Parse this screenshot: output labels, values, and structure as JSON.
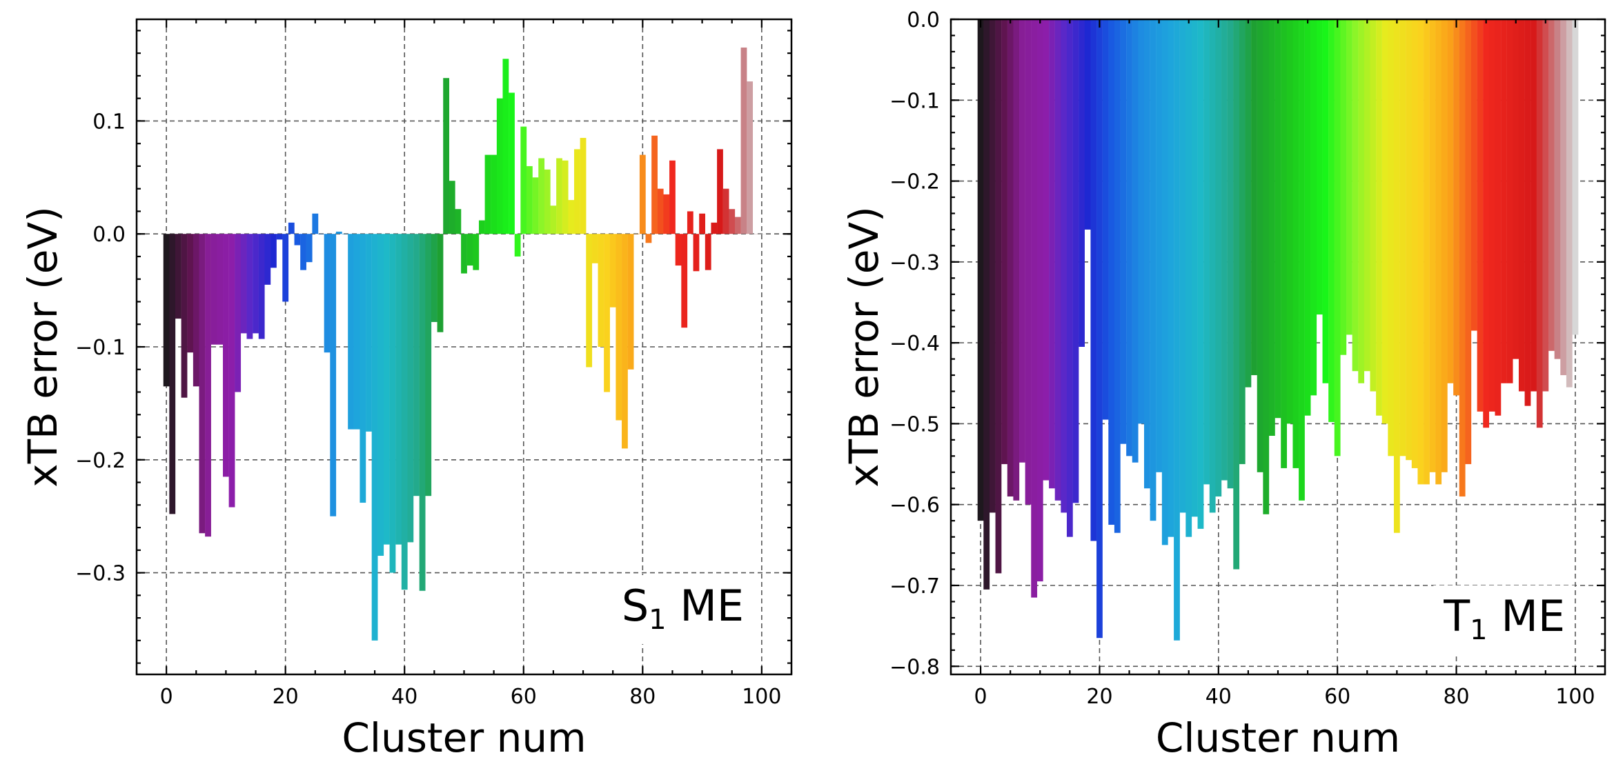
{
  "figure": {
    "panels": [
      {
        "annotation_main": "S",
        "annotation_sub": "1",
        "annotation_rest": " ME",
        "xlabel": "Cluster num",
        "ylabel": "xTB error (eV)"
      },
      {
        "annotation_main": "T",
        "annotation_sub": "1",
        "annotation_rest": " ME",
        "xlabel": "Cluster num",
        "ylabel": "xTB error (eV)"
      }
    ]
  },
  "chart_data": [
    {
      "type": "bar",
      "xlabel": "Cluster num",
      "ylabel": "xTB error (eV)",
      "annotation": "S1 ME",
      "xlim": [
        -5,
        105
      ],
      "ylim": [
        -0.39,
        0.19
      ],
      "xticks": [
        0,
        20,
        40,
        60,
        80,
        100
      ],
      "xtick_labels": [
        "0",
        "20",
        "40",
        "60",
        "80",
        "100"
      ],
      "yticks": [
        -0.3,
        -0.2,
        -0.1,
        0.0,
        0.1
      ],
      "ytick_labels": [
        "−0.3",
        "−0.2",
        "−0.1",
        "0.0",
        "0.1"
      ],
      "grid": true,
      "colormap": "gist_ncar-like rainbow (black → purple → blue → cyan → green → yellow → orange → red → light gray)",
      "x": [
        0,
        1,
        2,
        3,
        4,
        5,
        6,
        7,
        8,
        9,
        10,
        11,
        12,
        13,
        14,
        15,
        16,
        17,
        18,
        19,
        20,
        21,
        22,
        23,
        24,
        25,
        26,
        27,
        28,
        29,
        30,
        31,
        32,
        33,
        34,
        35,
        36,
        37,
        38,
        39,
        40,
        41,
        42,
        43,
        44,
        45,
        46,
        47,
        48,
        49,
        50,
        51,
        52,
        53,
        54,
        55,
        56,
        57,
        58,
        59,
        60,
        61,
        62,
        63,
        64,
        65,
        66,
        67,
        68,
        69,
        70,
        71,
        72,
        73,
        74,
        75,
        76,
        77,
        78,
        79,
        80,
        81,
        82,
        83,
        84,
        85,
        86,
        87,
        88,
        89,
        90,
        91,
        92,
        93,
        94,
        95,
        96,
        97,
        98,
        99,
        100
      ],
      "values": [
        -0.135,
        -0.248,
        -0.075,
        -0.145,
        -0.105,
        -0.135,
        -0.265,
        -0.268,
        -0.098,
        -0.098,
        -0.215,
        -0.242,
        -0.14,
        -0.088,
        -0.093,
        -0.088,
        -0.093,
        -0.045,
        -0.03,
        -0.005,
        -0.06,
        0.01,
        -0.01,
        -0.032,
        -0.025,
        0.018,
        0.0,
        -0.105,
        -0.25,
        0.002,
        0.0,
        -0.173,
        -0.173,
        -0.238,
        -0.175,
        -0.36,
        -0.285,
        -0.275,
        -0.3,
        -0.275,
        -0.315,
        -0.273,
        -0.232,
        -0.316,
        -0.232,
        -0.078,
        -0.087,
        0.138,
        0.047,
        0.022,
        -0.035,
        -0.028,
        -0.032,
        0.012,
        0.07,
        0.07,
        0.12,
        0.155,
        0.125,
        -0.02,
        0.095,
        0.06,
        0.05,
        0.067,
        0.057,
        0.025,
        0.067,
        0.065,
        0.03,
        0.075,
        0.085,
        -0.118,
        -0.026,
        -0.1,
        -0.14,
        -0.065,
        -0.165,
        -0.19,
        -0.12,
        0.0,
        0.07,
        -0.008,
        0.087,
        0.04,
        0.035,
        0.065,
        -0.028,
        -0.083,
        0.02,
        -0.033,
        0.018,
        -0.032,
        0.01,
        0.075,
        0.04,
        0.022,
        0.015,
        0.165,
        0.135,
        0.0,
        0.0
      ]
    },
    {
      "type": "bar",
      "xlabel": "Cluster num",
      "ylabel": "xTB error (eV)",
      "annotation": "T1 ME",
      "xlim": [
        -5,
        105
      ],
      "ylim": [
        -0.81,
        0.0
      ],
      "xticks": [
        0,
        20,
        40,
        60,
        80,
        100
      ],
      "xtick_labels": [
        "0",
        "20",
        "40",
        "60",
        "80",
        "100"
      ],
      "yticks": [
        -0.8,
        -0.7,
        -0.6,
        -0.5,
        -0.4,
        -0.3,
        -0.2,
        -0.1,
        0.0
      ],
      "ytick_labels": [
        "−0.8",
        "−0.7",
        "−0.6",
        "−0.5",
        "−0.4",
        "−0.3",
        "−0.2",
        "−0.1",
        "0.0"
      ],
      "grid": true,
      "colormap": "gist_ncar-like rainbow (black → purple → blue → cyan → green → yellow → orange → red → light gray)",
      "x": [
        0,
        1,
        2,
        3,
        4,
        5,
        6,
        7,
        8,
        9,
        10,
        11,
        12,
        13,
        14,
        15,
        16,
        17,
        18,
        19,
        20,
        21,
        22,
        23,
        24,
        25,
        26,
        27,
        28,
        29,
        30,
        31,
        32,
        33,
        34,
        35,
        36,
        37,
        38,
        39,
        40,
        41,
        42,
        43,
        44,
        45,
        46,
        47,
        48,
        49,
        50,
        51,
        52,
        53,
        54,
        55,
        56,
        57,
        58,
        59,
        60,
        61,
        62,
        63,
        64,
        65,
        66,
        67,
        68,
        69,
        70,
        71,
        72,
        73,
        74,
        75,
        76,
        77,
        78,
        79,
        80,
        81,
        82,
        83,
        84,
        85,
        86,
        87,
        88,
        89,
        90,
        91,
        92,
        93,
        94,
        95,
        96,
        97,
        98,
        99,
        100
      ],
      "values": [
        -0.62,
        -0.705,
        -0.61,
        -0.685,
        -0.55,
        -0.59,
        -0.595,
        -0.548,
        -0.6,
        -0.715,
        -0.695,
        -0.57,
        -0.58,
        -0.595,
        -0.61,
        -0.64,
        -0.598,
        -0.405,
        -0.26,
        -0.645,
        -0.765,
        -0.495,
        -0.625,
        -0.635,
        -0.525,
        -0.54,
        -0.548,
        -0.5,
        -0.58,
        -0.62,
        -0.56,
        -0.65,
        -0.64,
        -0.768,
        -0.61,
        -0.64,
        -0.615,
        -0.63,
        -0.575,
        -0.61,
        -0.59,
        -0.57,
        -0.58,
        -0.68,
        -0.55,
        -0.455,
        -0.44,
        -0.56,
        -0.612,
        -0.515,
        -0.493,
        -0.555,
        -0.5,
        -0.555,
        -0.595,
        -0.49,
        -0.465,
        -0.365,
        -0.45,
        -0.498,
        -0.54,
        -0.415,
        -0.39,
        -0.435,
        -0.45,
        -0.435,
        -0.46,
        -0.49,
        -0.5,
        -0.54,
        -0.635,
        -0.54,
        -0.545,
        -0.555,
        -0.575,
        -0.575,
        -0.56,
        -0.575,
        -0.56,
        -0.45,
        -0.465,
        -0.59,
        -0.55,
        -0.385,
        -0.485,
        -0.505,
        -0.485,
        -0.49,
        -0.45,
        -0.45,
        -0.42,
        -0.46,
        -0.478,
        -0.46,
        -0.505,
        -0.46,
        -0.41,
        -0.42,
        -0.44,
        -0.455,
        -0.39
      ]
    }
  ]
}
